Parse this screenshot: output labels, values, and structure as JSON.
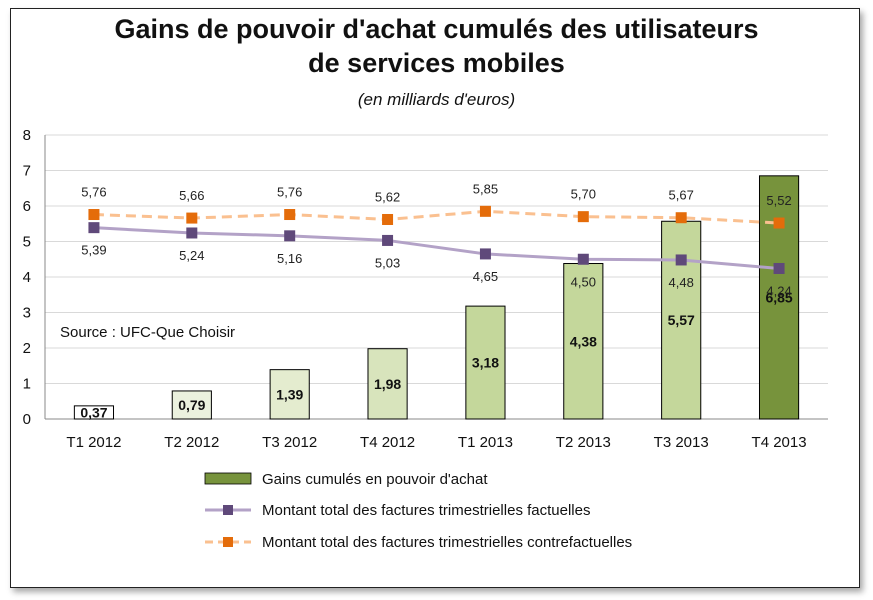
{
  "chart_data": {
    "type": "bar",
    "title_line1": "Gains de pouvoir d'achat cumulés des utilisateurs",
    "title_line2": "de services mobiles",
    "subtitle": "(en milliards d'euros)",
    "source": "Source : UFC-Que Choisir",
    "categories": [
      "T1 2012",
      "T2 2012",
      "T3 2012",
      "T4 2012",
      "T1 2013",
      "T2 2013",
      "T3 2013",
      "T4 2013"
    ],
    "ylim": [
      0,
      8
    ],
    "yticks": [
      0,
      1,
      2,
      3,
      4,
      5,
      6,
      7,
      8
    ],
    "grid": true,
    "legend_placement": "bottom",
    "series": [
      {
        "name": "Gains cumulés en pouvoir d'achat",
        "type": "bar",
        "values": [
          0.37,
          0.79,
          1.39,
          1.98,
          3.18,
          4.38,
          5.57,
          6.85
        ],
        "labels": [
          "0,37",
          "0,79",
          "1,39",
          "1,98",
          "3,18",
          "4,38",
          "5,57",
          "6,85"
        ],
        "colors": [
          "#ffffff",
          "#ebf1de",
          "#e4eccf",
          "#d8e4bc",
          "#c4d79b",
          "#c4d79b",
          "#c4d79b",
          "#77933c"
        ]
      },
      {
        "name": "Montant total des factures trimestrielles factuelles",
        "type": "line",
        "color": "#b3a2c7",
        "marker_color": "#5f497a",
        "values": [
          5.39,
          5.24,
          5.16,
          5.03,
          4.65,
          4.5,
          4.48,
          4.24
        ],
        "labels": [
          "5,39",
          "5,24",
          "5,16",
          "5,03",
          "4,65",
          "4,50",
          "4,48",
          "4,24"
        ]
      },
      {
        "name": "Montant total des factures trimestrielles contrefactuelles",
        "type": "line",
        "dashed": true,
        "color": "#fac090",
        "marker_color": "#e46c0a",
        "values": [
          5.76,
          5.66,
          5.76,
          5.62,
          5.85,
          5.7,
          5.67,
          5.52
        ],
        "labels": [
          "5,76",
          "5,66",
          "5,76",
          "5,62",
          "5,85",
          "5,70",
          "5,67",
          "5,52"
        ]
      }
    ]
  }
}
